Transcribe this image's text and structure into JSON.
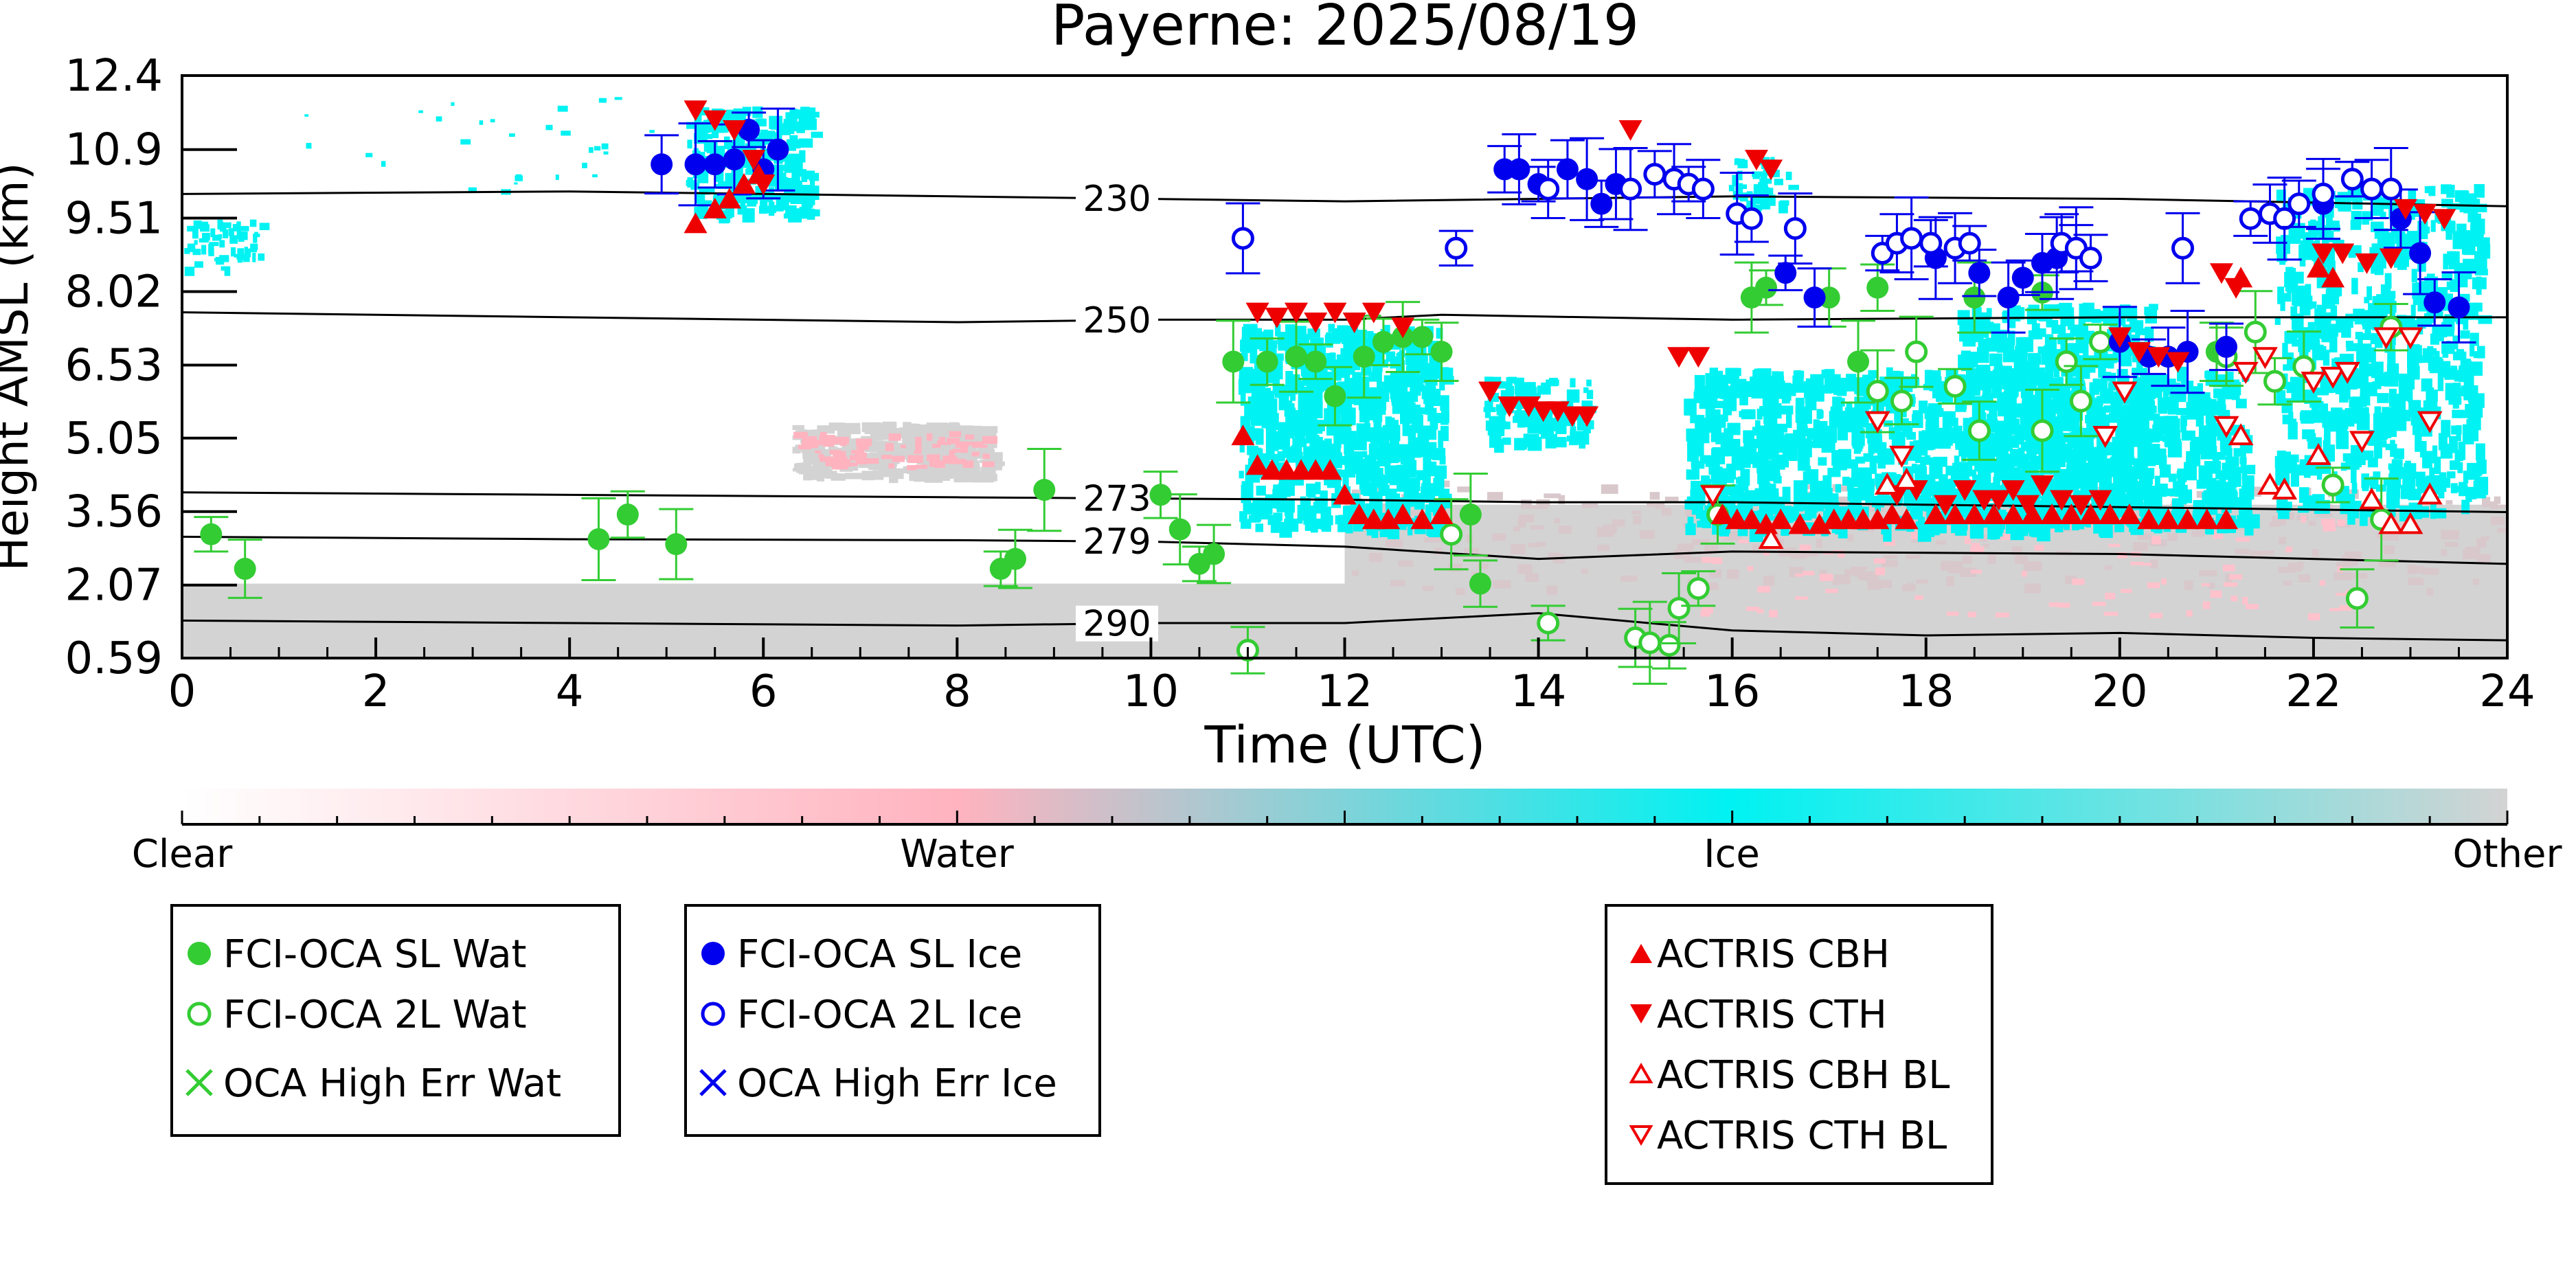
{
  "chart_data": {
    "type": "scatter",
    "title": "Payerne: 2025/08/19",
    "xlabel": "Time (UTC)",
    "ylabel": "Height AMSL (km)",
    "xlim": [
      0,
      24
    ],
    "ylim": [
      0.59,
      12.4
    ],
    "xticks": [
      "0",
      "2",
      "4",
      "6",
      "8",
      "10",
      "12",
      "14",
      "16",
      "18",
      "20",
      "22",
      "24"
    ],
    "yticks": [
      "12.4",
      "10.9",
      "9.51",
      "8.02",
      "6.53",
      "5.05",
      "3.56",
      "2.07",
      "0.59"
    ],
    "contours": [
      {
        "label": "230",
        "x": [
          0,
          4,
          8,
          12,
          16,
          20,
          24
        ],
        "y": [
          10.0,
          10.05,
          9.95,
          9.85,
          9.95,
          9.9,
          9.75
        ]
      },
      {
        "label": "250",
        "x": [
          0,
          4,
          8,
          10,
          12,
          13,
          16,
          20,
          24
        ],
        "y": [
          7.6,
          7.5,
          7.4,
          7.45,
          7.45,
          7.55,
          7.45,
          7.5,
          7.5
        ]
      },
      {
        "label": "273",
        "x": [
          0,
          4,
          8,
          12,
          14,
          16,
          20,
          24
        ],
        "y": [
          3.95,
          3.9,
          3.85,
          3.8,
          3.75,
          3.75,
          3.65,
          3.55
        ]
      },
      {
        "label": "279",
        "x": [
          0,
          4,
          8,
          10,
          12,
          14,
          16,
          20,
          24
        ],
        "y": [
          3.05,
          3.0,
          2.98,
          2.95,
          2.85,
          2.6,
          2.75,
          2.7,
          2.5
        ]
      },
      {
        "label": "290",
        "x": [
          0,
          4,
          8,
          10,
          12,
          14,
          16,
          18,
          20,
          22,
          24
        ],
        "y": [
          1.35,
          1.3,
          1.25,
          1.3,
          1.3,
          1.5,
          1.15,
          1.05,
          1.1,
          1.0,
          0.95
        ]
      }
    ],
    "series": [
      {
        "name": "FCI-OCA SL Wat",
        "marker": "filled-circle",
        "color": "#33cc33",
        "x": [
          0.3,
          0.65,
          4.3,
          4.6,
          5.1,
          8.45,
          8.6,
          8.9,
          10.1,
          10.3,
          10.5,
          10.65,
          10.85,
          11.2,
          11.5,
          11.7,
          11.9,
          12.2,
          12.4,
          12.6,
          12.8,
          13.0,
          13.3,
          13.4,
          16.2,
          16.35,
          17.0,
          17.3,
          17.5,
          18.5,
          19.2,
          21.0
        ],
        "y": [
          3.1,
          2.4,
          3.0,
          3.5,
          2.9,
          2.4,
          2.6,
          4.0,
          3.9,
          3.2,
          2.5,
          2.7,
          6.6,
          6.6,
          6.7,
          6.6,
          5.9,
          6.7,
          7.0,
          7.1,
          7.1,
          6.8,
          3.5,
          2.1,
          7.9,
          8.1,
          7.9,
          6.6,
          8.1,
          7.9,
          8.0,
          6.8
        ]
      },
      {
        "name": "FCI-OCA 2L Wat",
        "marker": "open-circle",
        "color": "#33cc33",
        "x": [
          11.0,
          13.1,
          14.1,
          15.0,
          15.15,
          15.35,
          15.45,
          15.65,
          15.85,
          17.5,
          17.75,
          17.9,
          18.3,
          18.55,
          19.2,
          19.45,
          19.6,
          19.8,
          21.1,
          21.4,
          21.6,
          21.9,
          22.2,
          22.45,
          22.7,
          22.8
        ],
        "y": [
          0.75,
          3.1,
          1.3,
          1.0,
          0.9,
          0.85,
          1.6,
          2.0,
          3.5,
          6.0,
          5.8,
          6.8,
          6.1,
          5.2,
          5.2,
          6.6,
          5.8,
          7.0,
          6.7,
          7.2,
          6.2,
          6.5,
          4.1,
          1.8,
          3.4,
          7.3
        ]
      },
      {
        "name": "FCI-OCA SL Ice",
        "marker": "filled-circle",
        "color": "#0000ee",
        "x": [
          4.95,
          5.3,
          5.5,
          5.7,
          5.85,
          6.0,
          6.15,
          13.65,
          13.8,
          14.0,
          14.3,
          14.5,
          14.65,
          14.8,
          16.55,
          16.85,
          18.1,
          18.55,
          18.85,
          19.0,
          19.2,
          19.35,
          19.55,
          20.0,
          20.3,
          20.5,
          20.7,
          21.1,
          22.1,
          22.4,
          22.9,
          23.1,
          23.25,
          23.5
        ],
        "y": [
          10.6,
          10.6,
          10.6,
          10.7,
          11.3,
          10.5,
          10.9,
          10.5,
          10.5,
          10.2,
          10.5,
          10.3,
          9.8,
          10.2,
          8.4,
          7.9,
          8.7,
          8.4,
          7.9,
          8.3,
          8.6,
          8.7,
          8.9,
          7.0,
          6.7,
          6.7,
          6.8,
          6.9,
          9.8,
          10.3,
          9.5,
          8.8,
          7.8,
          7.7
        ]
      },
      {
        "name": "FCI-OCA 2L Ice",
        "marker": "open-circle",
        "color": "#0000ee",
        "x": [
          10.95,
          13.15,
          14.1,
          14.95,
          15.2,
          15.4,
          15.55,
          15.7,
          16.05,
          16.2,
          16.65,
          17.55,
          17.7,
          17.85,
          18.05,
          18.3,
          18.45,
          19.4,
          19.55,
          19.7,
          20.65,
          21.35,
          21.55,
          21.7,
          21.85,
          22.1,
          22.4,
          22.6,
          22.8
        ],
        "y": [
          9.1,
          8.9,
          10.1,
          10.1,
          10.4,
          10.3,
          10.2,
          10.1,
          9.6,
          9.5,
          9.3,
          8.8,
          9.0,
          9.1,
          9.0,
          8.9,
          9.0,
          9.0,
          8.9,
          8.7,
          8.9,
          9.5,
          9.6,
          9.5,
          9.8,
          10.0,
          10.3,
          10.1,
          10.1
        ]
      },
      {
        "name": "OCA High Err Wat",
        "marker": "x",
        "color": "#33cc33",
        "x": [],
        "y": []
      },
      {
        "name": "OCA High Err Ice",
        "marker": "x",
        "color": "#0000ee",
        "x": [],
        "y": []
      },
      {
        "name": "ACTRIS CBH",
        "marker": "triangle-up",
        "color": "#ee0000",
        "x": [
          5.3,
          5.5,
          5.65,
          5.8,
          5.95,
          10.95,
          11.1,
          11.25,
          11.4,
          11.55,
          11.7,
          11.85,
          12.0,
          12.15,
          12.3,
          12.45,
          12.6,
          12.8,
          13.0,
          15.9,
          16.05,
          16.2,
          16.35,
          16.5,
          16.7,
          16.9,
          17.05,
          17.2,
          17.35,
          17.5,
          17.65,
          17.8,
          18.1,
          18.3,
          18.5,
          18.7,
          18.9,
          19.1,
          19.3,
          19.5,
          19.7,
          19.9,
          20.1,
          20.3,
          20.5,
          20.7,
          20.9,
          21.1,
          21.25,
          22.05,
          22.2
        ],
        "y": [
          9.4,
          9.7,
          9.9,
          10.2,
          10.4,
          5.1,
          4.5,
          4.4,
          4.4,
          4.4,
          4.4,
          4.4,
          3.9,
          3.5,
          3.4,
          3.4,
          3.5,
          3.4,
          3.5,
          3.5,
          3.4,
          3.4,
          3.3,
          3.4,
          3.3,
          3.3,
          3.4,
          3.4,
          3.4,
          3.4,
          3.5,
          3.4,
          3.5,
          3.5,
          3.5,
          3.5,
          3.5,
          3.5,
          3.5,
          3.5,
          3.5,
          3.5,
          3.5,
          3.4,
          3.4,
          3.4,
          3.4,
          3.4,
          8.3,
          8.5,
          8.3
        ]
      },
      {
        "name": "ACTRIS CTH",
        "marker": "triangle-down",
        "color": "#ee0000",
        "x": [
          5.3,
          5.5,
          5.7,
          5.9,
          6.0,
          11.1,
          11.3,
          11.5,
          11.7,
          11.9,
          12.1,
          12.3,
          12.6,
          13.5,
          13.7,
          13.9,
          14.05,
          14.2,
          14.35,
          14.5,
          14.95,
          15.45,
          15.65,
          16.25,
          16.4,
          17.7,
          17.9,
          18.2,
          18.4,
          18.6,
          18.75,
          18.9,
          19.05,
          19.2,
          19.4,
          19.6,
          19.8,
          20.0,
          20.2,
          20.4,
          20.6,
          21.05,
          21.2,
          22.1,
          22.3,
          22.55,
          22.8,
          22.95,
          23.15,
          23.35
        ],
        "y": [
          11.7,
          11.5,
          11.3,
          10.7,
          10.2,
          7.6,
          7.5,
          7.6,
          7.4,
          7.6,
          7.4,
          7.6,
          7.3,
          6.0,
          5.7,
          5.7,
          5.6,
          5.6,
          5.5,
          5.5,
          11.3,
          6.7,
          6.7,
          10.7,
          10.5,
          3.9,
          4.0,
          3.7,
          4.0,
          3.8,
          3.8,
          4.0,
          3.7,
          4.1,
          3.8,
          3.7,
          3.8,
          7.1,
          6.8,
          6.7,
          6.6,
          8.4,
          8.1,
          8.8,
          8.8,
          8.6,
          8.7,
          9.7,
          9.6,
          9.5
        ]
      },
      {
        "name": "ACTRIS CBH BL",
        "marker": "open-triangle-up",
        "color": "#ee0000",
        "x": [
          16.4,
          17.6,
          17.8,
          21.25,
          21.55,
          21.7,
          22.05,
          22.6,
          22.8,
          23.0,
          23.2
        ],
        "y": [
          3.0,
          4.1,
          4.2,
          5.1,
          4.1,
          4.0,
          4.7,
          3.8,
          3.3,
          3.3,
          3.9
        ]
      },
      {
        "name": "ACTRIS CTH BL",
        "marker": "open-triangle-down",
        "color": "#ee0000",
        "x": [
          15.8,
          17.5,
          17.75,
          19.85,
          20.05,
          21.1,
          21.3,
          21.5,
          22.0,
          22.2,
          22.35,
          22.5,
          22.75,
          23.0,
          23.2
        ],
        "y": [
          3.9,
          5.4,
          4.7,
          5.1,
          6.0,
          5.3,
          6.4,
          6.7,
          6.2,
          6.3,
          6.4,
          5.0,
          7.1,
          7.1,
          5.4
        ]
      }
    ],
    "colorbar": {
      "labels": [
        "Clear",
        "Water",
        "Ice",
        "Other"
      ],
      "colors": [
        "#ffffff",
        "#ffb3bf",
        "#00f2f2",
        "#d3d3d3"
      ]
    },
    "legend_placement": "below"
  }
}
